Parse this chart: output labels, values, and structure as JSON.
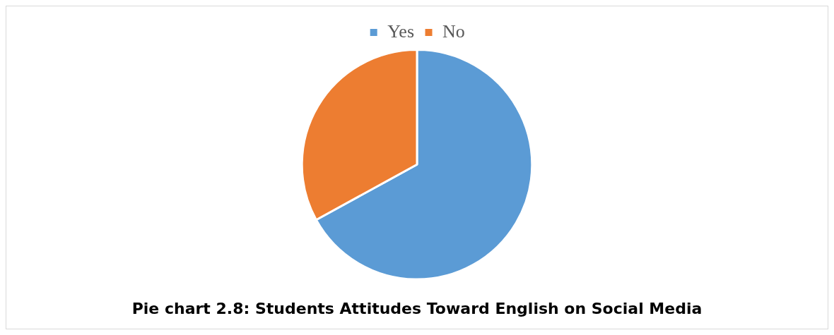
{
  "chart_data": {
    "type": "pie",
    "title": "Pie chart 2.8: Students Attitudes Toward English on Social Media",
    "categories": [
      "Yes",
      "No"
    ],
    "values": [
      67,
      33
    ],
    "colors": [
      "#5b9bd5",
      "#ed7d31"
    ],
    "legend": "top"
  }
}
